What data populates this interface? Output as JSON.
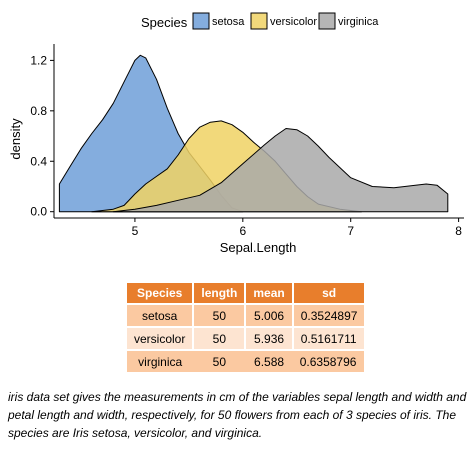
{
  "chart_data": {
    "type": "area",
    "subtype": "density",
    "xlabel": "Sepal.Length",
    "ylabel": "density",
    "xlim": [
      4.25,
      8.05
    ],
    "ylim": [
      -0.05,
      1.33
    ],
    "x_ticks": [
      5,
      6,
      7,
      8
    ],
    "y_ticks": [
      0.0,
      0.4,
      0.8,
      1.2
    ],
    "y_tick_labels": [
      "0.0",
      "0.4",
      "0.8",
      "1.2"
    ],
    "grid": false,
    "legend": {
      "title": "Species",
      "position": "top",
      "entries": [
        "setosa",
        "versicolor",
        "virginica"
      ]
    },
    "series": [
      {
        "name": "setosa",
        "color": "#6f9fd8",
        "points": [
          [
            4.3,
            0.22
          ],
          [
            4.4,
            0.36
          ],
          [
            4.5,
            0.5
          ],
          [
            4.6,
            0.62
          ],
          [
            4.7,
            0.73
          ],
          [
            4.8,
            0.86
          ],
          [
            4.9,
            1.03
          ],
          [
            5.0,
            1.2
          ],
          [
            5.05,
            1.24
          ],
          [
            5.1,
            1.22
          ],
          [
            5.2,
            1.05
          ],
          [
            5.3,
            0.82
          ],
          [
            5.4,
            0.62
          ],
          [
            5.5,
            0.47
          ],
          [
            5.6,
            0.36
          ],
          [
            5.7,
            0.25
          ],
          [
            5.8,
            0.13
          ],
          [
            5.9,
            0.03
          ],
          [
            6.0,
            0.0
          ]
        ]
      },
      {
        "name": "versicolor",
        "color": "#f0d264",
        "points": [
          [
            4.6,
            0.0
          ],
          [
            4.8,
            0.02
          ],
          [
            4.9,
            0.05
          ],
          [
            5.0,
            0.14
          ],
          [
            5.1,
            0.22
          ],
          [
            5.2,
            0.28
          ],
          [
            5.3,
            0.34
          ],
          [
            5.4,
            0.45
          ],
          [
            5.5,
            0.58
          ],
          [
            5.6,
            0.67
          ],
          [
            5.7,
            0.71
          ],
          [
            5.8,
            0.72
          ],
          [
            5.9,
            0.69
          ],
          [
            6.0,
            0.63
          ],
          [
            6.1,
            0.55
          ],
          [
            6.2,
            0.48
          ],
          [
            6.3,
            0.4
          ],
          [
            6.4,
            0.3
          ],
          [
            6.5,
            0.2
          ],
          [
            6.6,
            0.12
          ],
          [
            6.7,
            0.06
          ],
          [
            6.9,
            0.02
          ],
          [
            7.1,
            0.0
          ]
        ]
      },
      {
        "name": "virginica",
        "color": "#a9a9a9",
        "points": [
          [
            4.8,
            0.0
          ],
          [
            5.0,
            0.02
          ],
          [
            5.2,
            0.05
          ],
          [
            5.4,
            0.09
          ],
          [
            5.6,
            0.13
          ],
          [
            5.8,
            0.23
          ],
          [
            6.0,
            0.38
          ],
          [
            6.2,
            0.53
          ],
          [
            6.3,
            0.6
          ],
          [
            6.4,
            0.66
          ],
          [
            6.5,
            0.65
          ],
          [
            6.6,
            0.6
          ],
          [
            6.7,
            0.52
          ],
          [
            6.8,
            0.43
          ],
          [
            6.9,
            0.35
          ],
          [
            7.0,
            0.27
          ],
          [
            7.2,
            0.2
          ],
          [
            7.4,
            0.19
          ],
          [
            7.5,
            0.2
          ],
          [
            7.6,
            0.21
          ],
          [
            7.7,
            0.22
          ],
          [
            7.8,
            0.21
          ],
          [
            7.9,
            0.14
          ],
          [
            7.9,
            0.0
          ]
        ]
      }
    ]
  },
  "summary_table": {
    "headers": [
      "Species",
      "length",
      "mean",
      "sd"
    ],
    "rows": [
      [
        "setosa",
        "50",
        "5.006",
        "0.3524897"
      ],
      [
        "versicolor",
        "50",
        "5.936",
        "0.5161711"
      ],
      [
        "virginica",
        "50",
        "6.588",
        "0.6358796"
      ]
    ],
    "header_color": "#e87e2c",
    "row_colors": [
      "#fbc9a1",
      "#fde4d1"
    ]
  },
  "caption": "iris data set gives the measurements in cm of the variables sepal length and width and petal length and width, respectively, for 50 flowers from each of 3 species of iris. The species are Iris setosa, versicolor, and virginica."
}
